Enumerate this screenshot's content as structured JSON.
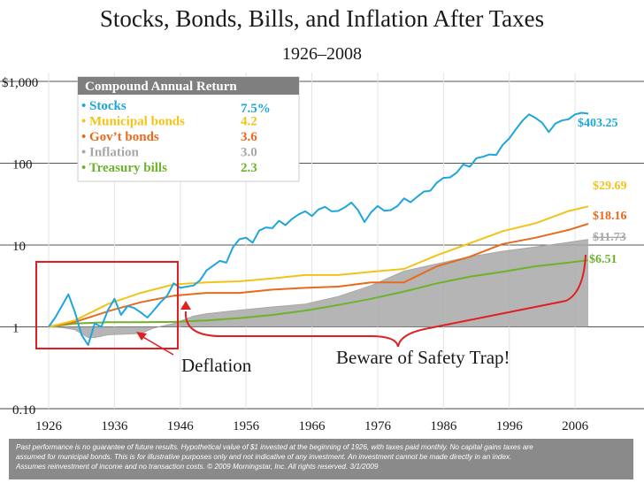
{
  "chart_data": {
    "type": "line",
    "title": "Stocks, Bonds, Bills, and Inflation After Taxes",
    "subtitle": "1926–2008",
    "y_scale": "log",
    "ylim": [
      0.1,
      1000
    ],
    "y_ticks": [
      {
        "value": 1000,
        "label": "$1,000"
      },
      {
        "value": 100,
        "label": "100"
      },
      {
        "value": 10,
        "label": "10"
      },
      {
        "value": 1,
        "label": "1"
      },
      {
        "value": 0.1,
        "label": "0.10"
      }
    ],
    "xlim": [
      1926,
      2008
    ],
    "x_ticks": [
      1926,
      1936,
      1946,
      1956,
      1966,
      1976,
      1986,
      1996,
      2006
    ],
    "legend": {
      "title": "Compound Annual Return",
      "placement": "top-left",
      "items": [
        {
          "name": "• Stocks",
          "value": "7.5%",
          "color": "#1ea6dc"
        },
        {
          "name": "• Municipal bonds",
          "value": "4.2",
          "color": "#f2c318"
        },
        {
          "name": "• Gov’t bonds",
          "value": "3.6",
          "color": "#e86a1c"
        },
        {
          "name": "• Inflation",
          "value": "3.0",
          "color": "#a8a8a8"
        },
        {
          "name": "• Treasury bills",
          "value": "2.3",
          "color": "#6cb32b"
        }
      ]
    },
    "series": [
      {
        "name": "Stocks",
        "color": "#1ea6dc",
        "end_label": "$403.25",
        "x": [
          1926,
          1927,
          1928,
          1929,
          1930,
          1931,
          1932,
          1933,
          1934,
          1935,
          1936,
          1937,
          1938,
          1939,
          1940,
          1941,
          1942,
          1943,
          1944,
          1945,
          1946,
          1947,
          1948,
          1949,
          1950,
          1951,
          1952,
          1953,
          1954,
          1955,
          1956,
          1957,
          1958,
          1959,
          1960,
          1961,
          1962,
          1963,
          1964,
          1965,
          1966,
          1967,
          1968,
          1969,
          1970,
          1971,
          1972,
          1973,
          1974,
          1975,
          1976,
          1977,
          1978,
          1979,
          1980,
          1981,
          1982,
          1983,
          1984,
          1985,
          1986,
          1987,
          1988,
          1989,
          1990,
          1991,
          1992,
          1993,
          1994,
          1995,
          1996,
          1997,
          1998,
          1999,
          2000,
          2001,
          2002,
          2003,
          2004,
          2005,
          2006,
          2007,
          2008
        ],
        "y": [
          1.0,
          1.3,
          1.8,
          2.5,
          1.5,
          0.8,
          0.6,
          1.1,
          1.0,
          1.6,
          2.2,
          1.4,
          1.8,
          1.7,
          1.5,
          1.3,
          1.6,
          2.0,
          2.4,
          3.4,
          3.0,
          3.1,
          3.2,
          3.7,
          4.9,
          5.6,
          6.4,
          6.1,
          9.4,
          11.8,
          12.3,
          10.7,
          15.0,
          16.4,
          16.1,
          19.8,
          17.5,
          20.9,
          23.7,
          25.9,
          22.6,
          27.2,
          29.3,
          25.8,
          26.1,
          28.9,
          33.1,
          26.8,
          19.1,
          25.2,
          30.0,
          26.3,
          26.7,
          30.0,
          37.1,
          33.4,
          38.8,
          45.0,
          46.1,
          58.0,
          66.1,
          67.2,
          76.6,
          96.6,
          90.6,
          115.0,
          120.0,
          128.0,
          126.0,
          168.0,
          201.0,
          260.0,
          330.0,
          395.0,
          357.0,
          312.0,
          240.0,
          305.0,
          333.0,
          345.0,
          395.0,
          413.0,
          403.25
        ]
      },
      {
        "name": "Municipal bonds",
        "color": "#f2c318",
        "end_label": "$29.69",
        "x": [
          1926,
          1930,
          1935,
          1940,
          1945,
          1950,
          1955,
          1960,
          1965,
          1970,
          1975,
          1980,
          1985,
          1990,
          1995,
          2000,
          2005,
          2008
        ],
        "y": [
          1.0,
          1.2,
          1.9,
          2.6,
          3.3,
          3.5,
          3.6,
          3.9,
          4.3,
          4.3,
          4.7,
          5.1,
          7.5,
          10.5,
          14.8,
          18.5,
          26.0,
          29.69
        ]
      },
      {
        "name": "Gov’t bonds",
        "color": "#e86a1c",
        "end_label": "$18.16",
        "x": [
          1926,
          1930,
          1935,
          1940,
          1945,
          1950,
          1955,
          1960,
          1965,
          1970,
          1975,
          1980,
          1985,
          1990,
          1995,
          2000,
          2005,
          2008
        ],
        "y": [
          1.0,
          1.15,
          1.55,
          2.0,
          2.4,
          2.6,
          2.6,
          2.85,
          3.0,
          3.1,
          3.5,
          3.5,
          5.5,
          7.2,
          10.3,
          12.3,
          15.3,
          18.16
        ]
      },
      {
        "name": "Inflation",
        "color": "#a8a8a8",
        "end_label": "$11.73",
        "x": [
          1926,
          1928,
          1930,
          1932,
          1933,
          1935,
          1940,
          1942,
          1945,
          1948,
          1950,
          1955,
          1960,
          1965,
          1970,
          1975,
          1980,
          1985,
          1990,
          1995,
          2000,
          2005,
          2008
        ],
        "y": [
          1.0,
          0.98,
          0.92,
          0.74,
          0.74,
          0.8,
          0.83,
          0.97,
          1.1,
          1.35,
          1.45,
          1.6,
          1.75,
          1.9,
          2.35,
          3.2,
          4.8,
          5.9,
          7.2,
          8.4,
          9.5,
          10.8,
          11.73
        ]
      },
      {
        "name": "Treasury bills",
        "color": "#6cb32b",
        "end_label": "$6.51",
        "x": [
          1926,
          1930,
          1935,
          1940,
          1945,
          1950,
          1955,
          1960,
          1965,
          1970,
          1975,
          1980,
          1985,
          1990,
          1995,
          2000,
          2005,
          2008
        ],
        "y": [
          1.0,
          1.1,
          1.14,
          1.14,
          1.15,
          1.2,
          1.28,
          1.4,
          1.58,
          1.85,
          2.2,
          2.7,
          3.4,
          4.1,
          4.7,
          5.5,
          6.1,
          6.51
        ]
      }
    ],
    "annotations": [
      {
        "text": "Deflation"
      },
      {
        "text": "Beware of Safety Trap!"
      }
    ],
    "footnote": {
      "line1": "Past performance is no guarantee of future results. Hypothetical value of $1 invested at the beginning of 1926, with taxes paid monthly. No capital gains taxes are",
      "line2": "assumed for municipal bonds. This is for illustrative purposes only and not indicative of any investment. An investment cannot be made directly in an index.",
      "line3": "Assumes reinvestment of income and no transaction costs. © 2009 Morningstar, Inc. All rights reserved. 3/1/2009"
    }
  }
}
